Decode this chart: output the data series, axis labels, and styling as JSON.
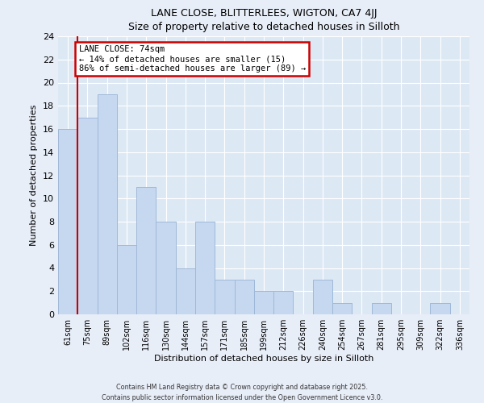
{
  "title": "LANE CLOSE, BLITTERLEES, WIGTON, CA7 4JJ",
  "subtitle": "Size of property relative to detached houses in Silloth",
  "xlabel": "Distribution of detached houses by size in Silloth",
  "ylabel": "Number of detached properties",
  "bar_labels": [
    "61sqm",
    "75sqm",
    "89sqm",
    "102sqm",
    "116sqm",
    "130sqm",
    "144sqm",
    "157sqm",
    "171sqm",
    "185sqm",
    "199sqm",
    "212sqm",
    "226sqm",
    "240sqm",
    "254sqm",
    "267sqm",
    "281sqm",
    "295sqm",
    "309sqm",
    "322sqm",
    "336sqm"
  ],
  "bar_values": [
    16,
    17,
    19,
    6,
    11,
    8,
    4,
    8,
    3,
    3,
    2,
    2,
    0,
    3,
    1,
    0,
    1,
    0,
    0,
    1,
    0
  ],
  "bar_color": "#c5d8f0",
  "bar_edge_color": "#a0b8d8",
  "vline_color": "#cc0000",
  "annotation_title": "LANE CLOSE: 74sqm",
  "annotation_line1": "← 14% of detached houses are smaller (15)",
  "annotation_line2": "86% of semi-detached houses are larger (89) →",
  "annotation_box_color": "#ffffff",
  "annotation_box_edge": "#cc0000",
  "ylim": [
    0,
    24
  ],
  "yticks": [
    0,
    2,
    4,
    6,
    8,
    10,
    12,
    14,
    16,
    18,
    20,
    22,
    24
  ],
  "bg_color": "#e8eef8",
  "plot_bg_color": "#dde8f5",
  "grid_color": "#ffffff",
  "footer1": "Contains HM Land Registry data © Crown copyright and database right 2025.",
  "footer2": "Contains public sector information licensed under the Open Government Licence v3.0."
}
